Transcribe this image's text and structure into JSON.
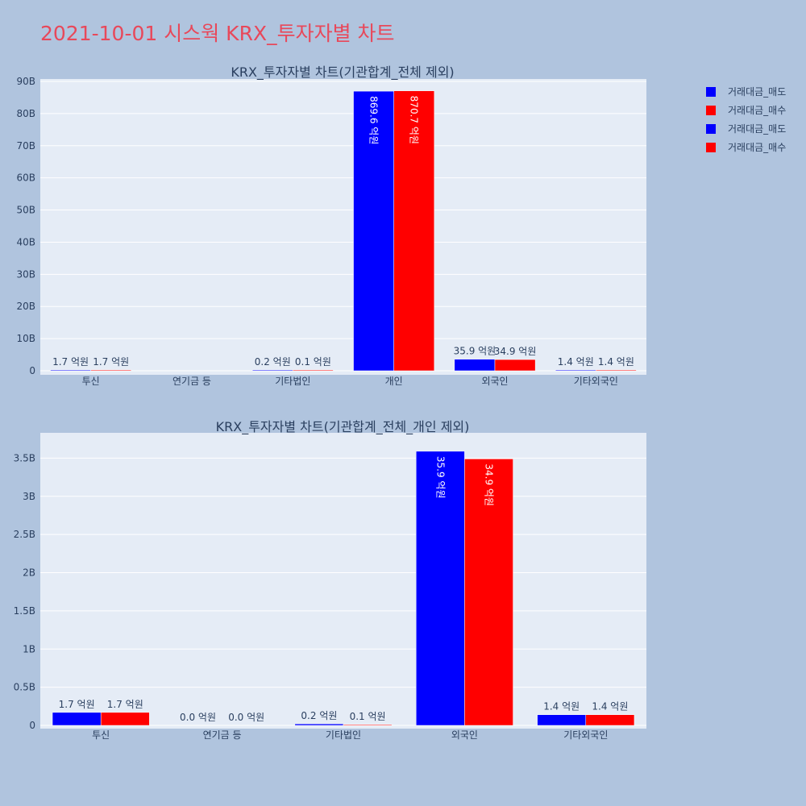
{
  "title": "2021-10-01 시스웍 KRX_투자자별 차트",
  "legend": [
    {
      "label": "거래대금_매도",
      "color": "#0000ff"
    },
    {
      "label": "거래대금_매수",
      "color": "#ff0000"
    },
    {
      "label": "거래대금_매도",
      "color": "#0000ff"
    },
    {
      "label": "거래대금_매수",
      "color": "#ff0000"
    }
  ],
  "chart_data": [
    {
      "type": "bar",
      "title": "KRX_투자자별 차트(기관합계_전체 제외)",
      "categories": [
        "투신",
        "연기금 등",
        "기타법인",
        "개인",
        "외국인",
        "기타외국인"
      ],
      "ylim": [
        0,
        90000000000
      ],
      "yticks": [
        0,
        10000000000,
        20000000000,
        30000000000,
        40000000000,
        50000000000,
        60000000000,
        70000000000,
        80000000000,
        90000000000
      ],
      "ytick_labels": [
        "0",
        "10B",
        "20B",
        "30B",
        "40B",
        "50B",
        "60B",
        "70B",
        "80B",
        "90B"
      ],
      "grid": true,
      "series": [
        {
          "name": "거래대금_매도",
          "color": "#0000ff",
          "values": [
            170000000,
            0,
            20000000,
            86960000000,
            3590000000,
            140000000
          ],
          "labels": [
            "1.7 억원",
            "",
            "0.2 억원",
            "869.6 억원",
            "35.9 억원",
            "1.4 억원"
          ]
        },
        {
          "name": "거래대금_매수",
          "color": "#ff0000",
          "values": [
            170000000,
            0,
            10000000,
            87070000000,
            3490000000,
            140000000
          ],
          "labels": [
            "1.7 억원",
            "",
            "0.1 억원",
            "870.7 억원",
            "34.9 억원",
            "1.4 억원"
          ]
        }
      ]
    },
    {
      "type": "bar",
      "title": "KRX_투자자별 차트(기관합계_전체_개인 제외)",
      "categories": [
        "투신",
        "연기금 등",
        "기타법인",
        "외국인",
        "기타외국인"
      ],
      "ylim": [
        0,
        3800000000
      ],
      "yticks": [
        0,
        500000000,
        1000000000,
        1500000000,
        2000000000,
        2500000000,
        3000000000,
        3500000000
      ],
      "ytick_labels": [
        "0",
        "0.5B",
        "1B",
        "1.5B",
        "2B",
        "2.5B",
        "3B",
        "3.5B"
      ],
      "grid": true,
      "series": [
        {
          "name": "거래대금_매도",
          "color": "#0000ff",
          "values": [
            170000000,
            0,
            20000000,
            3590000000,
            140000000
          ],
          "labels": [
            "1.7 억원",
            "0.0 억원",
            "0.2 억원",
            "35.9 억원",
            "1.4 억원"
          ]
        },
        {
          "name": "거래대금_매수",
          "color": "#ff0000",
          "values": [
            170000000,
            0,
            10000000,
            3490000000,
            140000000
          ],
          "labels": [
            "1.7 억원",
            "0.0 억원",
            "0.1 억원",
            "34.9 억원",
            "1.4 억원"
          ]
        }
      ]
    }
  ]
}
